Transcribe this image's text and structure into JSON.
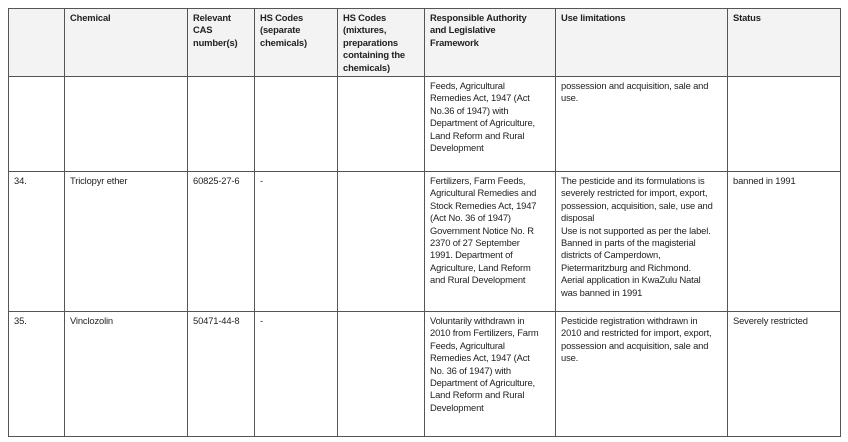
{
  "headers": [
    {
      "lines": [
        ""
      ]
    },
    {
      "lines": [
        "Chemical"
      ]
    },
    {
      "lines": [
        "Relevant",
        "CAS",
        "number(s)"
      ]
    },
    {
      "lines": [
        "HS Codes",
        "(separate",
        "chemicals)"
      ]
    },
    {
      "lines": [
        "HS Codes",
        "(mixtures,",
        "preparations",
        "containing the",
        "chemicals)"
      ]
    },
    {
      "lines": [
        "Responsible Authority",
        "and Legislative",
        "Framework"
      ]
    },
    {
      "lines": [
        "Use limitations"
      ]
    },
    {
      "lines": [
        "Status"
      ]
    }
  ],
  "rows": [
    {
      "cells": [
        {
          "lines": [
            ""
          ]
        },
        {
          "lines": [
            ""
          ]
        },
        {
          "lines": [
            ""
          ]
        },
        {
          "lines": [
            ""
          ]
        },
        {
          "lines": [
            ""
          ]
        },
        {
          "lines": [
            "Feeds, Agricultural",
            "Remedies Act, 1947 (Act",
            "No.36 of 1947) with",
            "Department of Agriculture,",
            "Land Reform and Rural",
            "Development"
          ]
        },
        {
          "lines": [
            "possession and acquisition, sale and",
            "use."
          ]
        },
        {
          "lines": [
            ""
          ]
        }
      ]
    },
    {
      "cells": [
        {
          "lines": [
            "34."
          ]
        },
        {
          "lines": [
            "Triclopyr ether"
          ]
        },
        {
          "lines": [
            "60825-27-6"
          ]
        },
        {
          "lines": [
            "-"
          ]
        },
        {
          "lines": [
            ""
          ]
        },
        {
          "lines": [
            "Fertilizers, Farm Feeds,",
            "Agricultural Remedies and",
            "Stock Remedies Act, 1947",
            "(Act No. 36 of 1947)",
            "Government Notice No. R",
            "2370 of 27 September",
            "1991.  Department of",
            "Agriculture, Land Reform",
            "and Rural Development"
          ]
        },
        {
          "lines": [
            "The pesticide and its formulations is",
            "severely restricted for import, export,",
            "possession, acquisition, sale, use and",
            "disposal",
            "Use is not supported as per the label.",
            "Banned in parts of the magisterial",
            "districts of Camperdown,",
            "Pietermaritzburg and Richmond.",
            "Aerial application in KwaZulu Natal",
            "was banned in 1991"
          ]
        },
        {
          "lines": [
            "banned in 1991"
          ]
        }
      ]
    },
    {
      "cells": [
        {
          "lines": [
            "35."
          ]
        },
        {
          "lines": [
            "Vinclozolin"
          ]
        },
        {
          "lines": [
            "50471-44-8"
          ]
        },
        {
          "lines": [
            "-"
          ]
        },
        {
          "lines": [
            ""
          ]
        },
        {
          "lines": [
            "Voluntarily withdrawn in",
            "2010 from Fertilizers, Farm",
            "Feeds, Agricultural",
            "Remedies Act, 1947 (Act",
            "No. 36 of 1947) with",
            "Department of Agriculture,",
            "Land Reform and Rural",
            "Development"
          ]
        },
        {
          "lines": [
            "Pesticide registration withdrawn in",
            "2010 and restricted for import, export,",
            "possession and acquisition, sale and",
            "use."
          ]
        },
        {
          "lines": [
            "Severely restricted"
          ]
        }
      ]
    }
  ]
}
